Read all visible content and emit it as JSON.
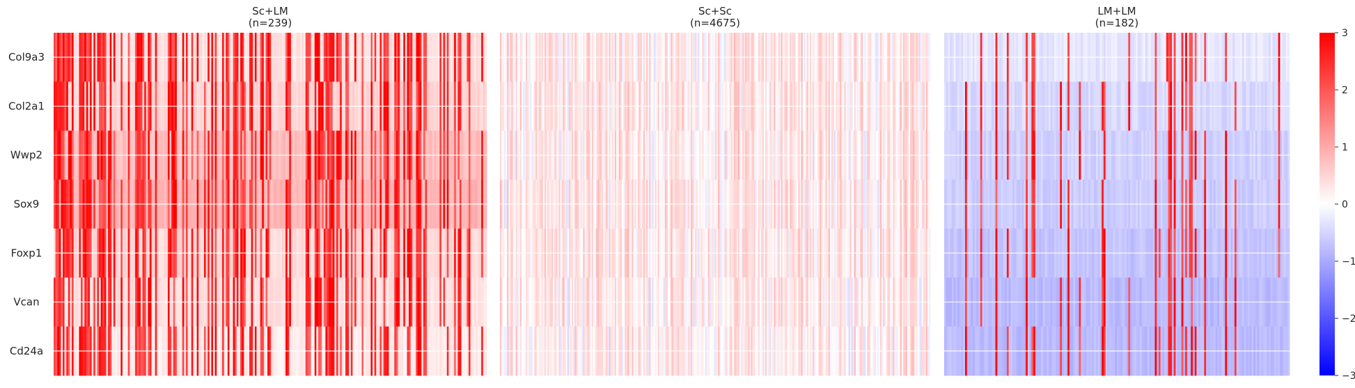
{
  "chart_data": {
    "type": "heatmap",
    "genes": [
      "Col9a3",
      "Col2a1",
      "Wwp2",
      "Sox9",
      "Foxp1",
      "Vcan",
      "Cd24a"
    ],
    "panels": [
      {
        "title_line1": "Sc+LM",
        "title_line2": "(n=239)",
        "n": 239,
        "row_mean": [
          0.35,
          0.5,
          0.75,
          0.85,
          0.45,
          0.35,
          0.25
        ],
        "red_fraction": 0.42,
        "dense_ranges": [
          [
            0.0,
            0.14
          ],
          [
            0.58,
            0.65
          ]
        ]
      },
      {
        "title_line1": "Sc+Sc",
        "title_line2": "(n=4675)",
        "n": 4675,
        "row_mean": [
          0.08,
          0.1,
          0.1,
          0.1,
          0.1,
          0.07,
          0.05
        ],
        "red_fraction": 0.0
      },
      {
        "title_line1": "LM+LM",
        "title_line2": "(n=182)",
        "n": 182,
        "row_mean": [
          -0.3,
          -0.45,
          -0.55,
          -0.6,
          -0.7,
          -0.8,
          -0.8
        ],
        "red_fraction": 0.16
      }
    ],
    "colorbar": {
      "vmin": -3,
      "vmax": 3,
      "ticks": [
        "3",
        "2",
        "1",
        "0",
        "−1",
        "−2",
        "−3"
      ],
      "colormap": [
        "#0000ff",
        "#ffffff",
        "#ff0000"
      ]
    },
    "grid": true
  }
}
